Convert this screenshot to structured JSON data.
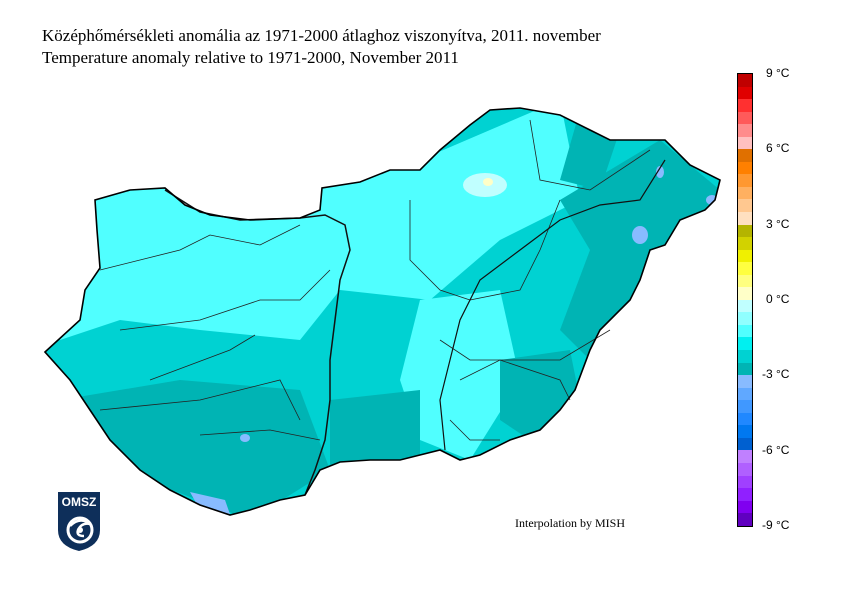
{
  "title_hu": "Középhőmérsékleti anomália az 1971-2000 átlaghoz viszonyítva, 2011. november",
  "title_en": "Temperature anomaly relative to 1971-2000, November 2011",
  "credit": "Interpolation by MISH",
  "logo": "OMSZ",
  "colorbar": {
    "min": -9,
    "max": 9,
    "step": 0.5,
    "ticks": [
      "9 °C",
      "6 °C",
      "3 °C",
      "0 °C",
      "-3 °C",
      "-6 °C",
      "-9 °C"
    ],
    "colors_top_to_bottom": [
      "#c00000",
      "#e00000",
      "#ff3030",
      "#ff5a5a",
      "#ff8c8c",
      "#ffc0c0",
      "#e07000",
      "#ff8000",
      "#ff9830",
      "#ffb060",
      "#ffc890",
      "#ffe0c0",
      "#b4b400",
      "#d2d200",
      "#f0f000",
      "#ffff40",
      "#ffff80",
      "#ffffc8",
      "#c0ffff",
      "#90ffff",
      "#50ffff",
      "#00f0f0",
      "#00d2d2",
      "#00b4b4",
      "#88bbff",
      "#60a8ff",
      "#4098ff",
      "#2088ff",
      "#0078f0",
      "#0060d0",
      "#c080ff",
      "#b060ff",
      "#a040ff",
      "#9020ff",
      "#8000f0",
      "#6000c0"
    ]
  },
  "map_colors": {
    "main": "#00d2d2",
    "cooler": "#00b4b4",
    "warmer": "#50ffff",
    "warmest": "#c0ffff",
    "cold_spots": "#88bbff"
  }
}
